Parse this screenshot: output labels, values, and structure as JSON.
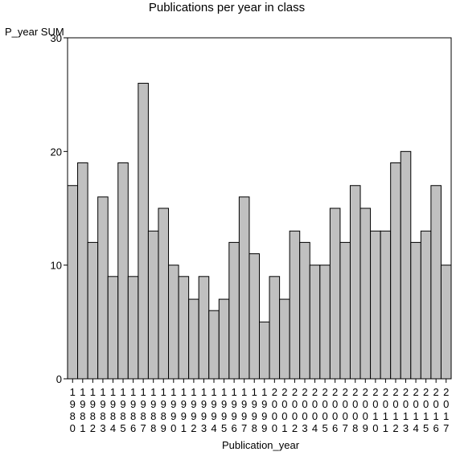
{
  "chart_data": {
    "type": "bar",
    "title": "Publications per year in class",
    "xlabel": "Publication_year",
    "ylabel": "P_year SUM",
    "ylim": [
      0,
      30
    ],
    "yticks": [
      0,
      10,
      20,
      30
    ],
    "grid": false,
    "bar_color": "#c0c0c0",
    "categories": [
      "1980",
      "1981",
      "1982",
      "1983",
      "1984",
      "1985",
      "1986",
      "1987",
      "1988",
      "1989",
      "1990",
      "1991",
      "1992",
      "1993",
      "1994",
      "1995",
      "1996",
      "1997",
      "1998",
      "1999",
      "2000",
      "2001",
      "2002",
      "2003",
      "2004",
      "2005",
      "2006",
      "2007",
      "2008",
      "2009",
      "2010",
      "2011",
      "2012",
      "2013",
      "2014",
      "2015",
      "2016",
      "2017"
    ],
    "values": [
      17,
      19,
      12,
      16,
      9,
      19,
      9,
      26,
      13,
      15,
      10,
      9,
      7,
      9,
      6,
      7,
      12,
      16,
      11,
      5,
      9,
      7,
      13,
      12,
      10,
      10,
      15,
      12,
      17,
      15,
      13,
      13,
      19,
      20,
      12,
      13,
      17,
      10
    ]
  }
}
